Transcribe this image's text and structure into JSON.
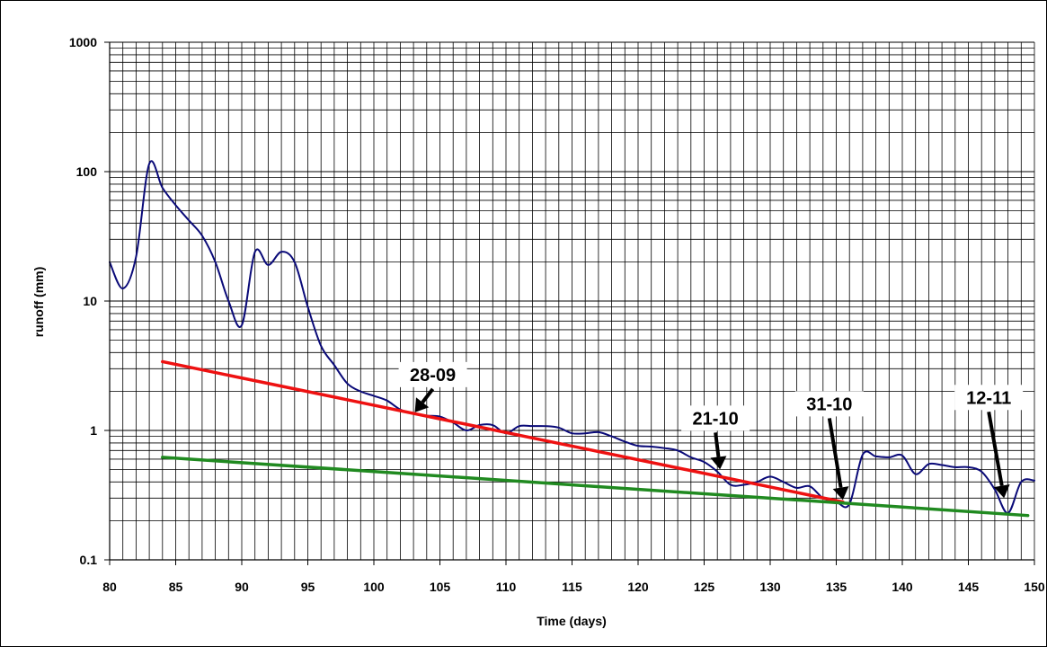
{
  "chart_data": {
    "type": "line",
    "title": "",
    "xlabel": "Time (days)",
    "ylabel": "runoff (mm)",
    "xlim": [
      80,
      150
    ],
    "ylim": [
      0.1,
      1000
    ],
    "y_scale": "log",
    "grid": true,
    "x_ticks": [
      80,
      85,
      90,
      95,
      100,
      105,
      110,
      115,
      120,
      125,
      130,
      135,
      140,
      145,
      150
    ],
    "x_tick_labels": [
      "80",
      "85",
      "90",
      "95",
      "100",
      "105",
      "110",
      "115",
      "120",
      "125",
      "130",
      "135",
      "140",
      "145",
      "150"
    ],
    "y_ticks": [
      0.1,
      1,
      10,
      100,
      1000
    ],
    "y_tick_labels": [
      "0.1",
      "1",
      "10",
      "100",
      "1000"
    ],
    "series": [
      {
        "color": "#0a0a78",
        "x": [
          80,
          81,
          82,
          83,
          84,
          85,
          86,
          87,
          88,
          89,
          90,
          91,
          92,
          93,
          94,
          95,
          96,
          97,
          98,
          99,
          100,
          101,
          102,
          103,
          104,
          105,
          106,
          107,
          108,
          109,
          110,
          111,
          112,
          113,
          114,
          115,
          116,
          117,
          118,
          119,
          120,
          121,
          122,
          123,
          124,
          125,
          126,
          127,
          128,
          129,
          130,
          131,
          132,
          133,
          134,
          135,
          136,
          137,
          138,
          139,
          140,
          141,
          142,
          143,
          144,
          145,
          146,
          147,
          148,
          149,
          150
        ],
        "values": [
          20,
          12.5,
          22,
          115,
          75,
          55,
          42,
          32,
          20,
          10,
          6.5,
          24,
          19,
          24,
          20,
          9,
          4.5,
          3.2,
          2.3,
          2.0,
          1.85,
          1.7,
          1.45,
          1.35,
          1.3,
          1.28,
          1.15,
          1.0,
          1.1,
          1.1,
          0.95,
          1.08,
          1.08,
          1.08,
          1.05,
          0.95,
          0.95,
          0.97,
          0.9,
          0.82,
          0.76,
          0.75,
          0.73,
          0.7,
          0.62,
          0.57,
          0.48,
          0.38,
          0.38,
          0.4,
          0.44,
          0.4,
          0.36,
          0.37,
          0.3,
          0.28,
          0.27,
          0.65,
          0.63,
          0.62,
          0.64,
          0.46,
          0.55,
          0.54,
          0.52,
          0.52,
          0.48,
          0.35,
          0.23,
          0.4,
          0.41
        ]
      },
      {
        "color": "#ee1111",
        "x": [
          84,
          135.5
        ],
        "values": [
          3.4,
          0.28
        ]
      },
      {
        "color": "#208a20",
        "x": [
          84,
          149.5
        ],
        "values": [
          0.62,
          0.22
        ]
      }
    ],
    "annotations": [
      {
        "text": "28-09",
        "x": 103.1,
        "y": 1.38
      },
      {
        "text": "21-10",
        "x": 126.2,
        "y": 0.5
      },
      {
        "text": "31-10",
        "x": 135.5,
        "y": 0.29
      },
      {
        "text": "12-11",
        "x": 147.7,
        "y": 0.3
      }
    ]
  }
}
